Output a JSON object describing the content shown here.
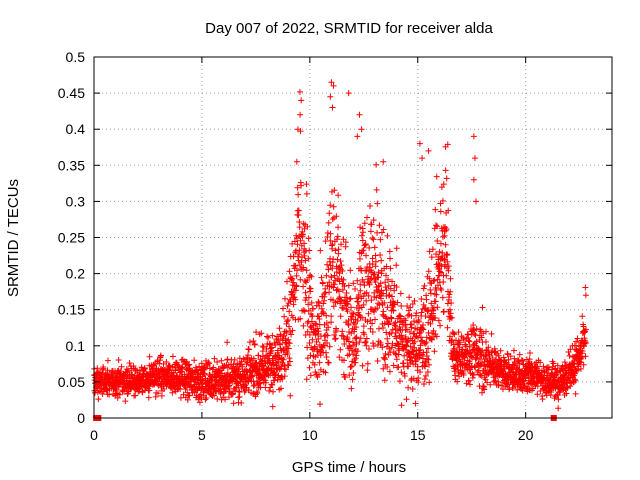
{
  "chart_data": {
    "type": "scatter",
    "title": "Day 007 of 2022, SRMTID for receiver alda",
    "xlabel": "GPS time / hours",
    "ylabel": "SRMTID / TECUs",
    "xlim": [
      0,
      24
    ],
    "ylim": [
      0,
      0.5
    ],
    "xticks": [
      0,
      5,
      10,
      15,
      20
    ],
    "yticks": [
      0,
      0.05,
      0.1,
      0.15,
      0.2,
      0.25,
      0.3,
      0.35,
      0.4,
      0.45,
      0.5
    ],
    "grid": true,
    "marker": "+",
    "color": "#ff0000",
    "series": [
      {
        "name": "SRMTID",
        "profile_x": [
          0,
          1,
          2,
          3,
          4,
          5,
          6,
          7,
          8,
          8.8,
          9.2,
          9.5,
          9.8,
          10.2,
          10.6,
          11,
          11.5,
          12,
          12.5,
          13,
          13.5,
          14,
          14.5,
          15,
          15.5,
          16,
          16.3,
          16.6,
          17,
          17.5,
          18,
          18.5,
          19,
          19.5,
          20,
          20.5,
          21,
          21.5,
          22,
          22.5,
          22.8
        ],
        "profile_y": [
          0.05,
          0.05,
          0.05,
          0.055,
          0.055,
          0.05,
          0.05,
          0.06,
          0.07,
          0.09,
          0.15,
          0.25,
          0.18,
          0.1,
          0.12,
          0.22,
          0.15,
          0.1,
          0.2,
          0.18,
          0.15,
          0.12,
          0.1,
          0.1,
          0.12,
          0.2,
          0.25,
          0.09,
          0.08,
          0.09,
          0.08,
          0.07,
          0.06,
          0.06,
          0.06,
          0.06,
          0.05,
          0.05,
          0.06,
          0.08,
          0.12
        ],
        "spread_y": [
          0.015,
          0.015,
          0.015,
          0.02,
          0.02,
          0.02,
          0.02,
          0.025,
          0.03,
          0.04,
          0.08,
          0.1,
          0.08,
          0.05,
          0.06,
          0.1,
          0.08,
          0.05,
          0.1,
          0.09,
          0.07,
          0.06,
          0.05,
          0.05,
          0.06,
          0.08,
          0.08,
          0.025,
          0.025,
          0.03,
          0.03,
          0.02,
          0.02,
          0.02,
          0.02,
          0.02,
          0.02,
          0.02,
          0.02,
          0.03,
          0.03
        ],
        "points_per_hour": 130,
        "peaks": [
          {
            "x": 9.6,
            "y": 0.44
          },
          {
            "x": 9.55,
            "y": 0.42
          },
          {
            "x": 9.45,
            "y": 0.4
          },
          {
            "x": 11.0,
            "y": 0.465
          },
          {
            "x": 11.1,
            "y": 0.46
          },
          {
            "x": 10.95,
            "y": 0.445
          },
          {
            "x": 11.05,
            "y": 0.43
          },
          {
            "x": 11.8,
            "y": 0.45
          },
          {
            "x": 12.3,
            "y": 0.42
          },
          {
            "x": 12.4,
            "y": 0.4
          },
          {
            "x": 12.2,
            "y": 0.39
          },
          {
            "x": 13.4,
            "y": 0.355
          },
          {
            "x": 15.1,
            "y": 0.38
          },
          {
            "x": 15.2,
            "y": 0.36
          },
          {
            "x": 15.5,
            "y": 0.37
          },
          {
            "x": 17.6,
            "y": 0.39
          },
          {
            "x": 17.65,
            "y": 0.36
          },
          {
            "x": 17.6,
            "y": 0.33
          },
          {
            "x": 17.7,
            "y": 0.3
          },
          {
            "x": 20.2,
            "y": 0.09
          },
          {
            "x": 14.9,
            "y": 0.02
          }
        ]
      }
    ],
    "baseline_markers_x": [
      0.1,
      0.15,
      0.2,
      21.3
    ]
  }
}
